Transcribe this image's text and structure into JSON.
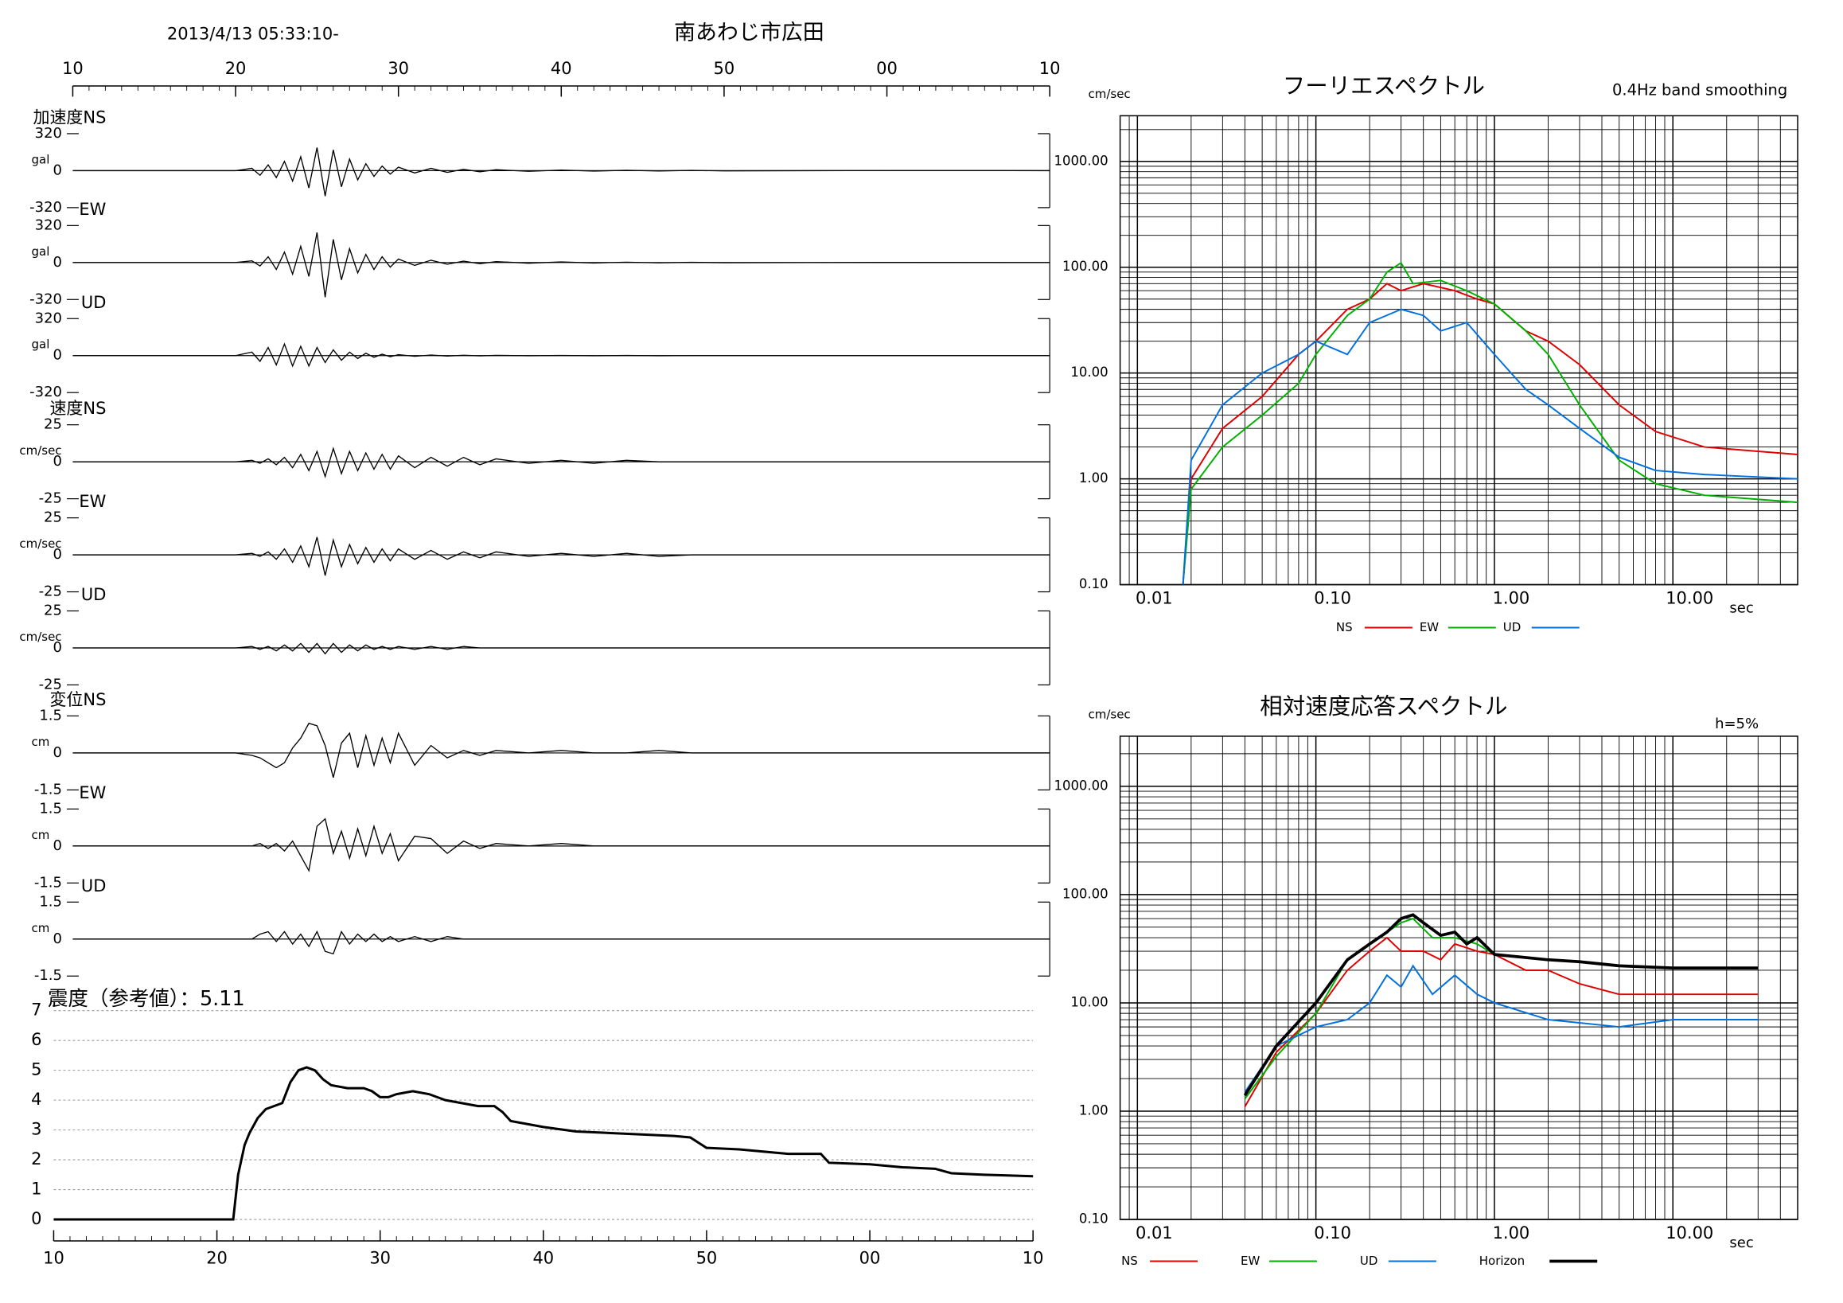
{
  "header": {
    "datetime": "2013/4/13 05:33:10-",
    "station": "南あわじ市広田"
  },
  "waveform_axis": {
    "xlim": [
      10,
      70
    ],
    "xticks": [
      10,
      20,
      30,
      40,
      50,
      {
        "value": 60,
        "label": "00"
      },
      {
        "value": 70,
        "label": "10"
      }
    ]
  },
  "chart_data": [
    {
      "type": "line",
      "title": "加速度NS",
      "unit": "gal",
      "color": "#000000",
      "ylim": [
        -320,
        320
      ],
      "yticks": [
        -320,
        0,
        320
      ],
      "x": [
        10,
        20,
        21,
        21.5,
        22,
        22.5,
        23,
        23.5,
        24,
        24.5,
        25,
        25.5,
        26,
        26.5,
        27,
        27.5,
        28,
        28.5,
        29,
        29.5,
        30,
        31,
        32,
        33,
        34,
        35,
        36,
        38,
        40,
        42,
        44,
        46,
        48,
        50,
        60,
        70
      ],
      "values": [
        0,
        0,
        20,
        -40,
        50,
        -60,
        80,
        -90,
        120,
        -150,
        200,
        -220,
        180,
        -140,
        100,
        -80,
        60,
        -50,
        40,
        -30,
        30,
        -20,
        20,
        -15,
        12,
        -10,
        8,
        -6,
        5,
        -4,
        3,
        -3,
        2,
        -2,
        1,
        0
      ]
    },
    {
      "type": "line",
      "title": "EW",
      "unit": "gal",
      "color": "#000000",
      "ylim": [
        -320,
        320
      ],
      "yticks": [
        -320,
        0,
        320
      ],
      "x": [
        10,
        20,
        21,
        21.5,
        22,
        22.5,
        23,
        23.5,
        24,
        24.5,
        25,
        25.5,
        26,
        26.5,
        27,
        27.5,
        28,
        28.5,
        29,
        29.5,
        30,
        31,
        32,
        33,
        34,
        35,
        36,
        38,
        40,
        42,
        44,
        46,
        48,
        50,
        60,
        70
      ],
      "values": [
        0,
        0,
        15,
        -30,
        50,
        -60,
        90,
        -100,
        140,
        -120,
        260,
        -300,
        200,
        -150,
        120,
        -90,
        70,
        -60,
        50,
        -40,
        30,
        -25,
        20,
        -15,
        12,
        -10,
        8,
        -6,
        5,
        -4,
        3,
        -3,
        2,
        -2,
        1,
        0
      ]
    },
    {
      "type": "line",
      "title": "UD",
      "unit": "gal",
      "color": "#000000",
      "ylim": [
        -320,
        320
      ],
      "yticks": [
        -320,
        0,
        320
      ],
      "x": [
        10,
        20,
        21,
        21.5,
        22,
        22.5,
        23,
        23.5,
        24,
        24.5,
        25,
        25.5,
        26,
        26.5,
        27,
        27.5,
        28,
        28.5,
        29,
        29.5,
        30,
        31,
        32,
        33,
        34,
        35,
        36,
        38,
        40,
        42,
        44,
        46,
        48,
        50,
        60,
        70
      ],
      "values": [
        0,
        0,
        30,
        -50,
        70,
        -80,
        100,
        -90,
        80,
        -90,
        70,
        -60,
        50,
        -40,
        30,
        -25,
        20,
        -15,
        12,
        -10,
        8,
        -6,
        5,
        -4,
        3,
        -2,
        2,
        -1,
        1,
        -1,
        1,
        -1,
        0,
        0,
        0,
        0
      ]
    },
    {
      "type": "line",
      "title": "速度NS",
      "unit": "cm/sec",
      "color": "#000000",
      "ylim": [
        -25,
        25
      ],
      "yticks": [
        -25,
        0,
        25
      ],
      "x": [
        10,
        20,
        21,
        21.5,
        22,
        22.5,
        23,
        23.5,
        24,
        24.5,
        25,
        25.5,
        26,
        26.5,
        27,
        27.5,
        28,
        28.5,
        29,
        29.5,
        30,
        31,
        32,
        33,
        34,
        35,
        36,
        38,
        40,
        42,
        44,
        46,
        48,
        50,
        60,
        70
      ],
      "values": [
        0,
        0,
        1,
        -1,
        2,
        -2,
        3,
        -4,
        5,
        -6,
        7,
        -10,
        9,
        -8,
        7,
        -6,
        6,
        -5,
        5,
        -5,
        4,
        -4,
        3,
        -3,
        3,
        -2,
        2,
        -1,
        1,
        -1,
        1,
        0,
        0,
        0,
        0,
        0
      ]
    },
    {
      "type": "line",
      "title": "EW",
      "unit": "cm/sec",
      "color": "#000000",
      "ylim": [
        -25,
        25
      ],
      "yticks": [
        -25,
        0,
        25
      ],
      "x": [
        10,
        20,
        21,
        21.5,
        22,
        22.5,
        23,
        23.5,
        24,
        24.5,
        25,
        25.5,
        26,
        26.5,
        27,
        27.5,
        28,
        28.5,
        29,
        29.5,
        30,
        31,
        32,
        33,
        34,
        35,
        36,
        38,
        40,
        42,
        44,
        46,
        48,
        50,
        60,
        70
      ],
      "values": [
        0,
        0,
        1,
        -1,
        2,
        -3,
        4,
        -5,
        6,
        -8,
        12,
        -14,
        10,
        -8,
        7,
        -6,
        5,
        -5,
        4,
        -4,
        4,
        -3,
        3,
        -3,
        2,
        -2,
        2,
        -1,
        1,
        -1,
        1,
        -1,
        0,
        0,
        0,
        0
      ]
    },
    {
      "type": "line",
      "title": "UD",
      "unit": "cm/sec",
      "color": "#000000",
      "ylim": [
        -25,
        25
      ],
      "yticks": [
        -25,
        0,
        25
      ],
      "x": [
        10,
        20,
        21,
        21.5,
        22,
        22.5,
        23,
        23.5,
        24,
        24.5,
        25,
        25.5,
        26,
        26.5,
        27,
        27.5,
        28,
        28.5,
        29,
        29.5,
        30,
        31,
        32,
        33,
        34,
        35,
        36,
        38,
        40,
        42,
        44,
        46,
        48,
        50,
        60,
        70
      ],
      "values": [
        0,
        0,
        1,
        -1,
        1,
        -2,
        2,
        -2,
        3,
        -3,
        3,
        -4,
        3,
        -3,
        2,
        -2,
        2,
        -1,
        1,
        -1,
        1,
        -1,
        1,
        -1,
        1,
        0,
        0,
        0,
        0,
        0,
        0,
        0,
        0,
        0,
        0,
        0
      ]
    },
    {
      "type": "line",
      "title": "変位NS",
      "unit": "cm",
      "color": "#000000",
      "ylim": [
        -1.5,
        1.5
      ],
      "yticks": [
        -1.5,
        0,
        1.5
      ],
      "x": [
        10,
        20,
        21,
        21.5,
        22,
        22.5,
        23,
        23.5,
        24,
        24.5,
        25,
        25.5,
        26,
        26.5,
        27,
        27.5,
        28,
        28.5,
        29,
        29.5,
        30,
        31,
        32,
        33,
        34,
        35,
        36,
        38,
        40,
        42,
        44,
        46,
        48,
        50,
        60,
        70
      ],
      "values": [
        0,
        0,
        -0.1,
        -0.2,
        -0.4,
        -0.6,
        -0.4,
        0.2,
        0.6,
        1.2,
        1.1,
        0.3,
        -1.0,
        0.4,
        0.8,
        -0.6,
        0.7,
        -0.5,
        0.6,
        -0.4,
        0.8,
        -0.5,
        0.3,
        -0.2,
        0.1,
        -0.1,
        0.1,
        0,
        0.1,
        0,
        0,
        0.1,
        0,
        0,
        0,
        0
      ]
    },
    {
      "type": "line",
      "title": "EW",
      "unit": "cm",
      "color": "#000000",
      "ylim": [
        -1.5,
        1.5
      ],
      "yticks": [
        -1.5,
        0,
        1.5
      ],
      "x": [
        10,
        20,
        21,
        21.5,
        22,
        22.5,
        23,
        23.5,
        24,
        24.5,
        25,
        25.5,
        26,
        26.5,
        27,
        27.5,
        28,
        28.5,
        29,
        29.5,
        30,
        31,
        32,
        33,
        34,
        35,
        36,
        38,
        40,
        42,
        44,
        46,
        48,
        50,
        60,
        70
      ],
      "values": [
        0,
        0,
        0,
        0.1,
        -0.1,
        0.1,
        -0.2,
        0.2,
        -0.4,
        -1.0,
        0.8,
        1.1,
        -0.3,
        0.6,
        -0.5,
        0.7,
        -0.4,
        0.8,
        -0.3,
        0.5,
        -0.6,
        0.4,
        0.3,
        -0.3,
        0.2,
        -0.1,
        0.1,
        0,
        0.1,
        0,
        0,
        0,
        0,
        0,
        0,
        0
      ]
    },
    {
      "type": "line",
      "title": "UD",
      "unit": "cm",
      "color": "#000000",
      "ylim": [
        -1.5,
        1.5
      ],
      "yticks": [
        -1.5,
        0,
        1.5
      ],
      "x": [
        10,
        20,
        21,
        21.5,
        22,
        22.5,
        23,
        23.5,
        24,
        24.5,
        25,
        25.5,
        26,
        26.5,
        27,
        27.5,
        28,
        28.5,
        29,
        29.5,
        30,
        31,
        32,
        33,
        34,
        35,
        36,
        38,
        40,
        42,
        44,
        46,
        48,
        50,
        60,
        70
      ],
      "values": [
        0,
        0,
        0,
        0.2,
        0.3,
        -0.1,
        0.3,
        -0.2,
        0.2,
        -0.3,
        0.3,
        -0.5,
        -0.6,
        0.3,
        -0.2,
        0.2,
        -0.1,
        0.2,
        -0.1,
        0.1,
        -0.1,
        0.1,
        -0.1,
        0.1,
        0,
        0,
        0,
        0,
        0,
        0,
        0,
        0,
        0,
        0,
        0,
        0
      ]
    },
    {
      "type": "line",
      "title": "震度（参考値）：5.11",
      "color": "#000000",
      "grid": true,
      "xlim": [
        10,
        70
      ],
      "xticks": [
        10,
        20,
        30,
        40,
        50,
        {
          "value": 60,
          "label": "00"
        },
        {
          "value": 70,
          "label": "10"
        }
      ],
      "ylim": [
        0,
        7
      ],
      "yticks": [
        0,
        1,
        2,
        3,
        4,
        5,
        6,
        7
      ],
      "x": [
        10,
        21,
        21.3,
        21.7,
        22,
        22.5,
        23,
        24,
        24.5,
        25,
        25.5,
        26,
        26.5,
        27,
        28,
        29,
        29.5,
        30,
        30.5,
        31,
        32,
        33,
        34,
        35,
        36,
        37,
        37.5,
        38,
        39,
        40,
        42,
        44,
        46,
        48,
        49,
        50,
        52,
        54,
        55,
        57,
        57.5,
        60,
        62,
        64,
        65,
        67,
        70
      ],
      "values": [
        0,
        0,
        1.5,
        2.5,
        2.9,
        3.4,
        3.7,
        3.9,
        4.6,
        5.0,
        5.1,
        5.0,
        4.7,
        4.5,
        4.4,
        4.4,
        4.3,
        4.1,
        4.1,
        4.2,
        4.3,
        4.2,
        4.0,
        3.9,
        3.8,
        3.8,
        3.6,
        3.3,
        3.2,
        3.1,
        2.95,
        2.9,
        2.85,
        2.8,
        2.75,
        2.4,
        2.35,
        2.25,
        2.2,
        2.2,
        1.9,
        1.85,
        1.75,
        1.7,
        1.55,
        1.5,
        1.45
      ]
    },
    {
      "type": "line",
      "title": "フーリエスペクトル",
      "subtitle": "0.4Hz band smoothing",
      "y_unit": "cm/sec",
      "x_unit": "sec",
      "xscale": "log",
      "yscale": "log",
      "grid": true,
      "legend": "bottom",
      "xlim": [
        0.008,
        50
      ],
      "xticks": [
        0.01,
        {
          "value": 0.1,
          "label": "0.10"
        },
        {
          "value": 1,
          "label": "1.00"
        },
        {
          "value": 10,
          "label": "10.00"
        }
      ],
      "ylim": [
        0.1,
        2700
      ],
      "yticks": [
        {
          "value": 0.1,
          "label": "0.10"
        },
        {
          "value": 1,
          "label": "1.00"
        },
        {
          "value": 10,
          "label": "10.00"
        },
        {
          "value": 100,
          "label": "100.00"
        },
        {
          "value": 1000,
          "label": "1000.00"
        }
      ],
      "series": [
        {
          "name": "NS",
          "color": "#e00000",
          "x": [
            0.018,
            0.02,
            0.03,
            0.05,
            0.08,
            0.1,
            0.15,
            0.2,
            0.25,
            0.3,
            0.4,
            0.6,
            0.8,
            1.0,
            1.5,
            2,
            3,
            5,
            8,
            15,
            50
          ],
          "values": [
            0.1,
            1,
            3,
            6,
            15,
            20,
            40,
            50,
            70,
            60,
            70,
            60,
            50,
            45,
            25,
            20,
            12,
            5,
            2.8,
            2,
            1.7
          ]
        },
        {
          "name": "EW",
          "color": "#00b000",
          "x": [
            0.018,
            0.02,
            0.03,
            0.05,
            0.08,
            0.1,
            0.15,
            0.2,
            0.25,
            0.3,
            0.35,
            0.5,
            0.7,
            1,
            1.5,
            2,
            3,
            5,
            8,
            15,
            50
          ],
          "values": [
            0.1,
            0.8,
            2,
            4,
            8,
            15,
            35,
            50,
            90,
            110,
            70,
            75,
            60,
            45,
            25,
            15,
            5,
            1.5,
            0.9,
            0.7,
            0.6
          ]
        },
        {
          "name": "UD",
          "color": "#0070e0",
          "x": [
            0.018,
            0.02,
            0.03,
            0.05,
            0.08,
            0.1,
            0.15,
            0.2,
            0.3,
            0.4,
            0.5,
            0.7,
            1,
            1.5,
            2,
            3,
            5,
            8,
            15,
            50
          ],
          "values": [
            0.1,
            1.5,
            5,
            10,
            15,
            20,
            15,
            30,
            40,
            35,
            25,
            30,
            15,
            7,
            5,
            3,
            1.6,
            1.2,
            1.1,
            1.0
          ]
        }
      ]
    },
    {
      "type": "line",
      "title": "相対速度応答スペクトル",
      "annotation": "h=5%",
      "y_unit": "cm/sec",
      "x_unit": "sec",
      "xscale": "log",
      "yscale": "log",
      "grid": true,
      "legend": "bottom",
      "xlim": [
        0.008,
        50
      ],
      "xticks": [
        0.01,
        {
          "value": 0.1,
          "label": "0.10"
        },
        {
          "value": 1,
          "label": "1.00"
        },
        {
          "value": 10,
          "label": "10.00"
        }
      ],
      "ylim": [
        0.1,
        2900
      ],
      "yticks": [
        {
          "value": 0.1,
          "label": "0.10"
        },
        {
          "value": 1,
          "label": "1.00"
        },
        {
          "value": 10,
          "label": "10.00"
        },
        {
          "value": 100,
          "label": "100.00"
        },
        {
          "value": 1000,
          "label": "1000.00"
        }
      ],
      "series": [
        {
          "name": "NS",
          "color": "#e00000",
          "x": [
            0.04,
            0.06,
            0.1,
            0.15,
            0.2,
            0.25,
            0.3,
            0.4,
            0.5,
            0.6,
            0.8,
            1,
            1.5,
            2,
            3,
            5,
            10,
            30
          ],
          "values": [
            1.1,
            3.5,
            8,
            20,
            30,
            40,
            30,
            30,
            25,
            35,
            30,
            28,
            20,
            20,
            15,
            12,
            12,
            12
          ]
        },
        {
          "name": "EW",
          "color": "#00b000",
          "x": [
            0.04,
            0.06,
            0.1,
            0.15,
            0.2,
            0.3,
            0.35,
            0.45,
            0.6,
            0.8,
            1,
            2,
            3,
            5,
            10,
            30
          ],
          "values": [
            1.3,
            3.2,
            8,
            25,
            35,
            55,
            60,
            40,
            40,
            35,
            28,
            25,
            24,
            22,
            21,
            21
          ]
        },
        {
          "name": "UD",
          "color": "#0070e0",
          "x": [
            0.04,
            0.06,
            0.1,
            0.15,
            0.2,
            0.25,
            0.3,
            0.35,
            0.45,
            0.6,
            0.8,
            1,
            2,
            5,
            10,
            30
          ],
          "values": [
            1.5,
            4,
            6,
            7,
            10,
            18,
            14,
            22,
            12,
            18,
            12,
            10,
            7,
            6,
            7,
            7
          ]
        },
        {
          "name": "Horizon",
          "color": "#000000",
          "x": [
            0.04,
            0.06,
            0.1,
            0.15,
            0.2,
            0.25,
            0.3,
            0.35,
            0.4,
            0.5,
            0.6,
            0.7,
            0.8,
            1,
            2,
            3,
            5,
            10,
            30
          ],
          "values": [
            1.4,
            4,
            10,
            25,
            35,
            45,
            60,
            65,
            55,
            42,
            45,
            35,
            40,
            28,
            25,
            24,
            22,
            21,
            21
          ]
        }
      ]
    }
  ]
}
